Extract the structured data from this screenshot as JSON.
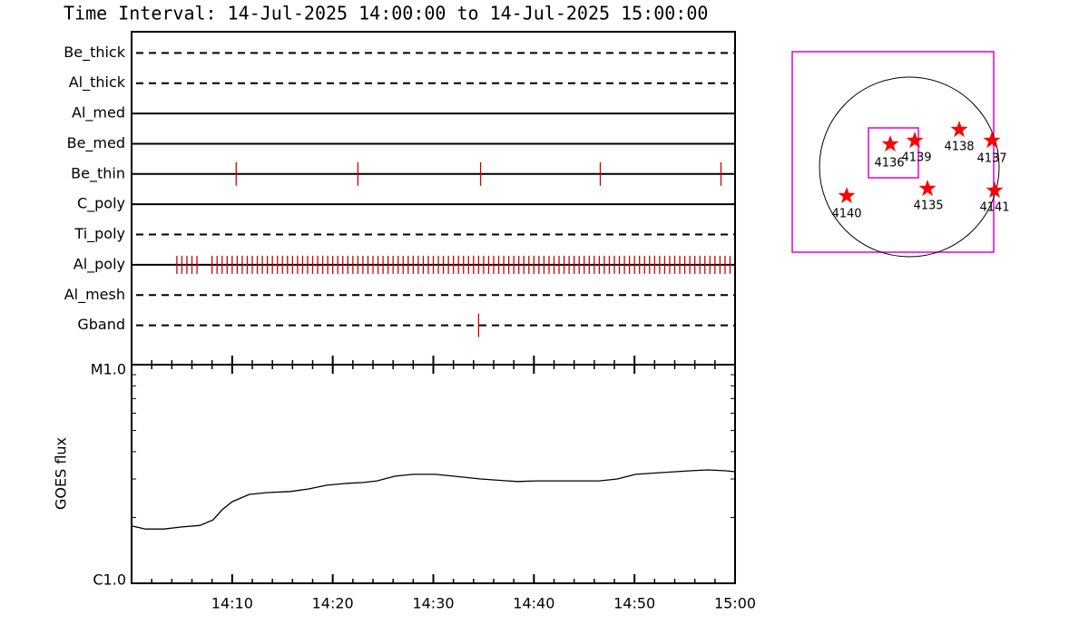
{
  "chart_data": [
    {
      "type": "event",
      "title": "Time Interval: 14-Jul-2025 14:00:00 to 14-Jul-2025 15:00:00",
      "xlim": [
        0,
        60
      ],
      "rows": [
        {
          "name": "Be_thick",
          "line": "dashed",
          "color": "#d00000",
          "times": []
        },
        {
          "name": "Al_thick",
          "line": "dashed",
          "color": "#d00000",
          "times": []
        },
        {
          "name": "Al_med",
          "line": "solid",
          "color": "#d00000",
          "times": []
        },
        {
          "name": "Be_med",
          "line": "solid",
          "color": "#d00000",
          "times": []
        },
        {
          "name": "Be_thin",
          "line": "solid",
          "color": "#d00000",
          "times": [
            10.4,
            22.5,
            34.7,
            46.6,
            58.6
          ]
        },
        {
          "name": "C_poly",
          "line": "solid",
          "color": "#d00000",
          "times": []
        },
        {
          "name": "Ti_poly",
          "line": "dashed",
          "color": "#d00000",
          "times": []
        },
        {
          "name": "Al_poly",
          "line": "solid",
          "color": "#d00000",
          "times": [
            4.5,
            5,
            5.5,
            6,
            6.5,
            8,
            8.5,
            9,
            9.5,
            10,
            10.5,
            11,
            11.5,
            12,
            12.5,
            13,
            13.5,
            14,
            14.5,
            15,
            15.5,
            16,
            16.5,
            17,
            17.5,
            18,
            18.5,
            19,
            19.5,
            20,
            20.5,
            21,
            21.5,
            22,
            22.5,
            23,
            23.5,
            24,
            24.5,
            25,
            25.5,
            26,
            26.5,
            27,
            27.5,
            28,
            28.5,
            29,
            29.5,
            30,
            30.5,
            31,
            31.5,
            32,
            32.5,
            33,
            33.5,
            34,
            34.5,
            35,
            35.5,
            36,
            36.5,
            37,
            37.5,
            38,
            38.5,
            39,
            39.5,
            40,
            40.5,
            41,
            41.5,
            42,
            42.5,
            43,
            43.5,
            44,
            44.5,
            45,
            45.5,
            46,
            46.5,
            47,
            47.5,
            48,
            48.5,
            49,
            49.5,
            50,
            50.5,
            51,
            51.5,
            52,
            52.5,
            53,
            53.5,
            54,
            54.5,
            55,
            55.5,
            56,
            56.5,
            57,
            57.5,
            58,
            58.5,
            59,
            59.5
          ]
        },
        {
          "name": "Al_mesh",
          "line": "dashed",
          "color": "#d00000",
          "times": []
        },
        {
          "name": "Gband",
          "line": "dashed",
          "color": "#d00000",
          "times": [
            34.5
          ]
        }
      ]
    },
    {
      "type": "line",
      "ylabel": "GOES flux",
      "log": true,
      "color": "#000000",
      "x": [
        0,
        1.4,
        3.2,
        5,
        6.8,
        8.1,
        9,
        10,
        11.7,
        13.5,
        15.8,
        17.6,
        19.4,
        21.2,
        23,
        24.4,
        26.2,
        28,
        30.2,
        32,
        34.7,
        37.4,
        38.4,
        40.2,
        42.9,
        46.5,
        48.3,
        50.1,
        52.8,
        55.5,
        57.3,
        59.1,
        60
      ],
      "values": [
        1.83e-06,
        1.77e-06,
        1.77e-06,
        1.81e-06,
        1.84e-06,
        1.95e-06,
        2.17e-06,
        2.36e-06,
        2.55e-06,
        2.6e-06,
        2.63e-06,
        2.7e-06,
        2.81e-06,
        2.86e-06,
        2.89e-06,
        2.94e-06,
        3.09e-06,
        3.15e-06,
        3.15e-06,
        3.09e-06,
        3e-06,
        2.94e-06,
        2.92e-06,
        2.94e-06,
        2.94e-06,
        2.94e-06,
        3e-06,
        3.15e-06,
        3.21e-06,
        3.27e-06,
        3.3e-06,
        3.27e-06,
        3.24e-06
      ],
      "xlim": [
        0,
        60
      ],
      "xticks": [
        {
          "value": 10,
          "label": "14:10"
        },
        {
          "value": 20,
          "label": "14:20"
        },
        {
          "value": 30,
          "label": "14:30"
        },
        {
          "value": 40,
          "label": "14:40"
        },
        {
          "value": 50,
          "label": "14:50"
        },
        {
          "value": 60,
          "label": "15:00"
        }
      ],
      "xminor": 5,
      "ylim": [
        1e-06,
        1e-05
      ],
      "yticks": [
        {
          "value": 1e-06,
          "label": "C1.0"
        },
        {
          "value": 1e-05,
          "label": "M1.0"
        }
      ]
    }
  ],
  "map": {
    "regions": [
      "4136",
      "4139",
      "4138",
      "4137",
      "4135",
      "4141",
      "4140"
    ]
  }
}
